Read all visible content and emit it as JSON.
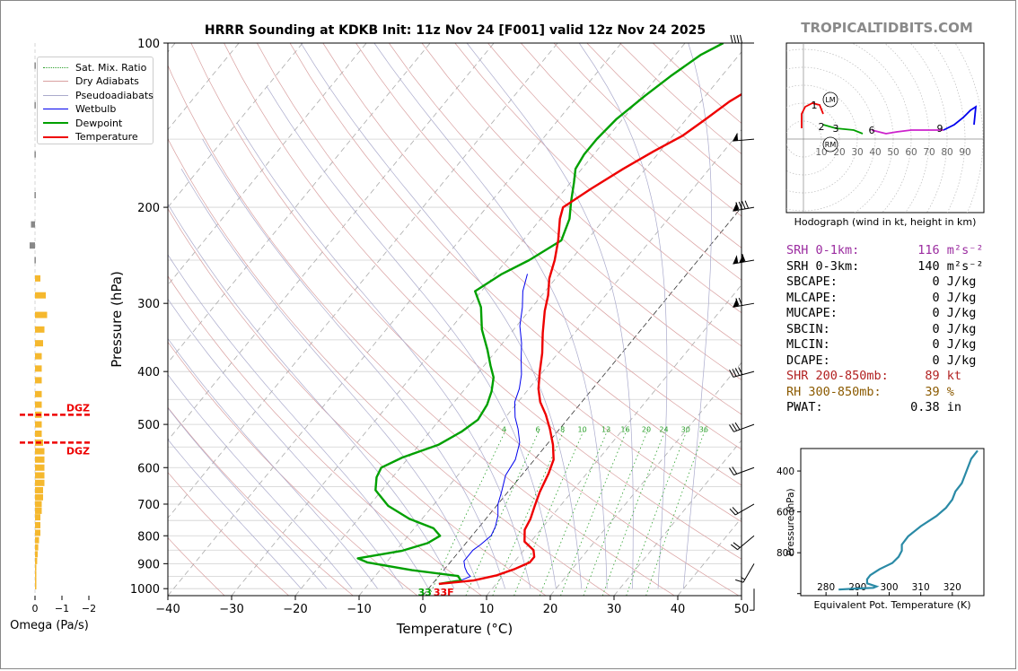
{
  "page_title": "HRRR Sounding at KDKB Init: 11z Nov 24 [F001] valid 12z Nov 24 2025",
  "brand": "TROPICALTIDBITS.COM",
  "legend": [
    {
      "label": "Sat. Mix. Ratio",
      "color": "#2ca02c",
      "style": "dotted"
    },
    {
      "label": "Dry Adiabats",
      "color": "#d9a0a0",
      "style": "solid"
    },
    {
      "label": "Pseudoadiabats",
      "color": "#aaaacc",
      "style": "solid"
    },
    {
      "label": "Wetbulb",
      "color": "#0000ee",
      "style": "solid"
    },
    {
      "label": "Dewpoint",
      "color": "#00a000",
      "style": "solid"
    },
    {
      "label": "Temperature",
      "color": "#ee0000",
      "style": "solid"
    }
  ],
  "stats": [
    {
      "label": "SRH 0-1km:",
      "value": "116",
      "unit": "m²s⁻²",
      "color": "#9b2ca0"
    },
    {
      "label": "SRH 0-3km:",
      "value": "140",
      "unit": "m²s⁻²",
      "color": "#000000"
    },
    {
      "label": "SBCAPE:",
      "value": "0",
      "unit": "J/kg",
      "color": "#000000"
    },
    {
      "label": "MLCAPE:",
      "value": "0",
      "unit": "J/kg",
      "color": "#000000"
    },
    {
      "label": "MUCAPE:",
      "value": "0",
      "unit": "J/kg",
      "color": "#000000"
    },
    {
      "label": "SBCIN:",
      "value": "0",
      "unit": "J/kg",
      "color": "#000000"
    },
    {
      "label": "MLCIN:",
      "value": "0",
      "unit": "J/kg",
      "color": "#000000"
    },
    {
      "label": "DCAPE:",
      "value": "0",
      "unit": "J/kg",
      "color": "#000000"
    },
    {
      "label": "SHR 200-850mb:",
      "value": "89",
      "unit": "kt",
      "color": "#b22222"
    },
    {
      "label": "RH 300-850mb:",
      "value": "39",
      "unit": "%",
      "color": "#8b5a00"
    },
    {
      "label": "PWAT:",
      "value": "0.38",
      "unit": "in",
      "color": "#000000"
    }
  ],
  "chart_data": [
    {
      "type": "line",
      "name": "skew-t",
      "xlabel": "Temperature (°C)",
      "ylabel": "Pressure (hPa)",
      "xlim": [
        -40,
        50
      ],
      "ylim": [
        1030,
        100
      ],
      "y_scale": "log",
      "xticks": [
        "−40",
        "−30",
        "−20",
        "−10",
        "0",
        "10",
        "20",
        "30",
        "40",
        "50"
      ],
      "yticks": [
        100,
        200,
        300,
        400,
        500,
        600,
        700,
        800,
        900,
        1000
      ],
      "mix_ratio_labels": [
        "4",
        "6",
        "8",
        "10",
        "13",
        "16",
        "20",
        "24",
        "30",
        "36"
      ],
      "surface_dewpoint_label": "33",
      "surface_temperature_label": "33F",
      "temperature": {
        "color": "#ee0000",
        "points": [
          [
            1,
            980
          ],
          [
            6,
            966
          ],
          [
            9,
            945
          ],
          [
            11,
            920
          ],
          [
            12.5,
            895
          ],
          [
            12.5,
            875
          ],
          [
            11.5,
            850
          ],
          [
            9,
            820
          ],
          [
            7.5,
            780
          ],
          [
            7,
            745
          ],
          [
            6,
            705
          ],
          [
            5,
            665
          ],
          [
            4,
            615
          ],
          [
            3,
            580
          ],
          [
            1,
            545
          ],
          [
            -1.5,
            510
          ],
          [
            -4,
            480
          ],
          [
            -6.5,
            455
          ],
          [
            -8.5,
            430
          ],
          [
            -10.5,
            400
          ],
          [
            -12.5,
            370
          ],
          [
            -15,
            340
          ],
          [
            -17.5,
            310
          ],
          [
            -19,
            290
          ],
          [
            -21,
            270
          ],
          [
            -22.5,
            250
          ],
          [
            -24.5,
            230
          ],
          [
            -27,
            210
          ],
          [
            -28,
            200
          ],
          [
            -26,
            185
          ],
          [
            -23.5,
            170
          ],
          [
            -21,
            158
          ],
          [
            -18.5,
            148
          ],
          [
            -17,
            138
          ],
          [
            -15.5,
            128
          ],
          [
            -13.5,
            120
          ],
          [
            -11,
            112
          ],
          [
            -8.5,
            105
          ],
          [
            -6,
            100
          ]
        ]
      },
      "dewpoint": {
        "color": "#00a000",
        "points": [
          [
            1,
            980
          ],
          [
            4,
            966
          ],
          [
            3,
            948
          ],
          [
            -5,
            925
          ],
          [
            -13,
            895
          ],
          [
            -15,
            880
          ],
          [
            -9,
            852
          ],
          [
            -6,
            825
          ],
          [
            -5,
            800
          ],
          [
            -7,
            775
          ],
          [
            -12,
            745
          ],
          [
            -17,
            705
          ],
          [
            -21,
            660
          ],
          [
            -22.5,
            625
          ],
          [
            -23,
            600
          ],
          [
            -21,
            575
          ],
          [
            -17,
            545
          ],
          [
            -15,
            515
          ],
          [
            -14,
            490
          ],
          [
            -14.5,
            460
          ],
          [
            -15.5,
            435
          ],
          [
            -17,
            410
          ],
          [
            -19,
            390
          ],
          [
            -21.5,
            365
          ],
          [
            -25,
            335
          ],
          [
            -28,
            305
          ],
          [
            -31,
            285
          ],
          [
            -29,
            265
          ],
          [
            -26.5,
            250
          ],
          [
            -24,
            230
          ],
          [
            -25.5,
            210
          ],
          [
            -27.5,
            195
          ],
          [
            -29.5,
            180
          ],
          [
            -31,
            170
          ],
          [
            -31.5,
            160
          ],
          [
            -31.5,
            150
          ],
          [
            -31,
            138
          ],
          [
            -29.5,
            125
          ],
          [
            -28,
            115
          ],
          [
            -26,
            105
          ],
          [
            -24,
            100
          ]
        ]
      },
      "wetbulb": {
        "color": "#0000ee",
        "points": [
          [
            1,
            980
          ],
          [
            4,
            966
          ],
          [
            5,
            950
          ],
          [
            4,
            935
          ],
          [
            3,
            915
          ],
          [
            2,
            890
          ],
          [
            2,
            870
          ],
          [
            2,
            850
          ],
          [
            2.5,
            830
          ],
          [
            3,
            800
          ],
          [
            2.5,
            770
          ],
          [
            1.5,
            735
          ],
          [
            0,
            700
          ],
          [
            -1,
            665
          ],
          [
            -2.5,
            620
          ],
          [
            -3,
            580
          ],
          [
            -4.5,
            540
          ],
          [
            -6.5,
            510
          ],
          [
            -8.5,
            485
          ],
          [
            -10.5,
            455
          ],
          [
            -11.5,
            430
          ],
          [
            -13,
            405
          ],
          [
            -15,
            380
          ],
          [
            -17,
            355
          ],
          [
            -19.5,
            330
          ],
          [
            -21.5,
            305
          ],
          [
            -23.5,
            285
          ],
          [
            -25,
            265
          ]
        ]
      },
      "barbs": [
        {
          "p": 100,
          "speed": 40,
          "dir": 270
        },
        {
          "p": 150,
          "speed": 50,
          "dir": 265
        },
        {
          "p": 200,
          "speed": 90,
          "dir": 260
        },
        {
          "p": 250,
          "speed": 110,
          "dir": 260
        },
        {
          "p": 300,
          "speed": 70,
          "dir": 260
        },
        {
          "p": 400,
          "speed": 40,
          "dir": 255
        },
        {
          "p": 500,
          "speed": 30,
          "dir": 250
        },
        {
          "p": 600,
          "speed": 20,
          "dir": 250
        },
        {
          "p": 700,
          "speed": 20,
          "dir": 240
        },
        {
          "p": 800,
          "speed": 20,
          "dir": 230
        },
        {
          "p": 900,
          "speed": 15,
          "dir": 210
        },
        {
          "p": 1000,
          "speed": 5,
          "dir": 180
        }
      ]
    },
    {
      "type": "bar",
      "name": "omega",
      "xlabel": "Omega (Pa/s)",
      "xlim": [
        0.2,
        -2
      ],
      "xticks": [
        "0",
        "−1",
        "−2"
      ],
      "dgz_label": "DGZ",
      "dgz_pressure": [
        480,
        540
      ],
      "values": [
        [
          0.02,
          110
        ],
        [
          0.02,
          130
        ],
        [
          0.02,
          160
        ],
        [
          0.02,
          190
        ],
        [
          0.15,
          215
        ],
        [
          0.2,
          235
        ],
        [
          0.02,
          250
        ],
        [
          -0.2,
          270
        ],
        [
          -0.4,
          290
        ],
        [
          -0.45,
          315
        ],
        [
          -0.35,
          335
        ],
        [
          -0.3,
          355
        ],
        [
          -0.25,
          375
        ],
        [
          -0.25,
          395
        ],
        [
          -0.25,
          415
        ],
        [
          -0.25,
          440
        ],
        [
          -0.25,
          460
        ],
        [
          -0.25,
          480
        ],
        [
          -0.25,
          500
        ],
        [
          -0.25,
          520
        ],
        [
          -0.3,
          540
        ],
        [
          -0.35,
          560
        ],
        [
          -0.35,
          580
        ],
        [
          -0.35,
          600
        ],
        [
          -0.35,
          620
        ],
        [
          -0.35,
          640
        ],
        [
          -0.3,
          660
        ],
        [
          -0.3,
          680
        ],
        [
          -0.25,
          700
        ],
        [
          -0.25,
          720
        ],
        [
          -0.2,
          740
        ],
        [
          -0.2,
          765
        ],
        [
          -0.2,
          790
        ],
        [
          -0.15,
          815
        ],
        [
          -0.12,
          840
        ],
        [
          -0.1,
          865
        ],
        [
          -0.08,
          890
        ],
        [
          -0.05,
          915
        ],
        [
          -0.05,
          940
        ],
        [
          -0.05,
          965
        ],
        [
          -0.05,
          990
        ]
      ]
    },
    {
      "type": "line",
      "name": "hodograph",
      "caption": "Hodograph (wind in kt, height in km)",
      "range_labels": [
        "10",
        "20",
        "30",
        "40",
        "50",
        "60",
        "70",
        "80",
        "90"
      ],
      "storm_motion_labels": [
        "LM",
        "RM"
      ],
      "height_labels": [
        {
          "label": "1",
          "u": 6,
          "v": 19
        },
        {
          "label": "2",
          "u": 10,
          "v": 7
        },
        {
          "label": "3",
          "u": 18,
          "v": 6
        },
        {
          "label": "6",
          "u": 38,
          "v": 5
        },
        {
          "label": "9",
          "u": 76,
          "v": 6
        }
      ],
      "segments": [
        {
          "color": "#ee0000",
          "points": [
            [
              -1,
              6
            ],
            [
              -1,
              14
            ],
            [
              1,
              18
            ],
            [
              5,
              20
            ],
            [
              9,
              19
            ],
            [
              11,
              14
            ]
          ]
        },
        {
          "color": "#00a000",
          "points": [
            [
              11,
              8
            ],
            [
              18,
              6
            ],
            [
              28,
              5
            ],
            [
              33,
              3
            ]
          ]
        },
        {
          "color": "#cc22cc",
          "points": [
            [
              38,
              5
            ],
            [
              42,
              4
            ],
            [
              46,
              3
            ],
            [
              52,
              4
            ],
            [
              60,
              5
            ],
            [
              70,
              5
            ],
            [
              78,
              5
            ]
          ]
        },
        {
          "color": "#0000ee",
          "points": [
            [
              78,
              5
            ],
            [
              84,
              8
            ],
            [
              89,
              12
            ],
            [
              93,
              16
            ],
            [
              96,
              18
            ],
            [
              95,
              8
            ]
          ]
        }
      ]
    },
    {
      "type": "line",
      "name": "theta-e",
      "xlabel": "Equivalent Pot. Temperature (K)",
      "ylabel": "Pressure (hPa)",
      "xticks": [
        "280",
        "290",
        "300",
        "310",
        "320"
      ],
      "yticks": [
        "400",
        "600",
        "800"
      ],
      "series": [
        {
          "color": "#2a8aa6",
          "points": [
            [
              284,
              980
            ],
            [
              290,
              975
            ],
            [
              295,
              972
            ],
            [
              296,
              965
            ],
            [
              293,
              950
            ],
            [
              293,
              930
            ],
            [
              294,
              910
            ],
            [
              297,
              880
            ],
            [
              301,
              850
            ],
            [
              303,
              820
            ],
            [
              304,
              790
            ],
            [
              304,
              760
            ],
            [
              306,
              720
            ],
            [
              310,
              670
            ],
            [
              315,
              620
            ],
            [
              318,
              580
            ],
            [
              320,
              540
            ],
            [
              321,
              500
            ],
            [
              323,
              460
            ],
            [
              324,
              420
            ],
            [
              325,
              380
            ],
            [
              326,
              340
            ],
            [
              328,
              300
            ]
          ]
        }
      ]
    }
  ]
}
